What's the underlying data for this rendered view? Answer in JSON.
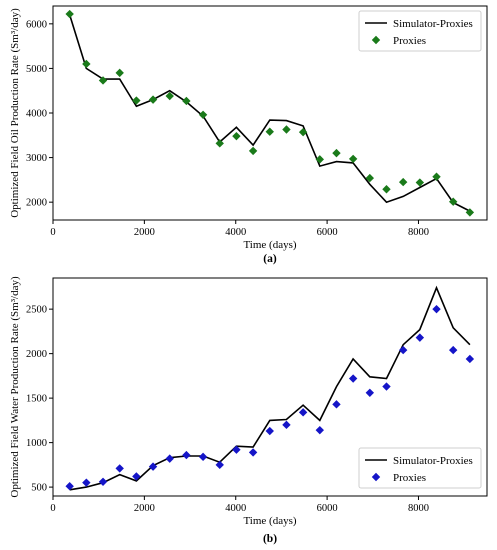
{
  "chart_data": [
    {
      "type": "line",
      "caption": "(a)",
      "xlabel": "Time (days)",
      "ylabel": "Optimized Field Oil Production Rate (Sm³/day)",
      "xlim": [
        0,
        9500
      ],
      "ylim": [
        1600,
        6400
      ],
      "xticks": [
        0,
        2000,
        4000,
        6000,
        8000
      ],
      "yticks": [
        2000,
        3000,
        4000,
        5000,
        6000
      ],
      "grid": false,
      "legend_position": "top-right",
      "series": [
        {
          "name": "Simulator-Proxies",
          "style": "line",
          "color": "#000000",
          "x": [
            365,
            730,
            1095,
            1460,
            1825,
            2190,
            2555,
            2920,
            3285,
            3650,
            4015,
            4380,
            4745,
            5110,
            5475,
            5840,
            6205,
            6570,
            6935,
            7300,
            7665,
            8030,
            8395,
            8760,
            9125
          ],
          "y": [
            6200,
            5000,
            4760,
            4760,
            4150,
            4300,
            4500,
            4250,
            3930,
            3350,
            3680,
            3280,
            3840,
            3830,
            3710,
            2810,
            2910,
            2880,
            2400,
            2000,
            2130,
            2330,
            2530,
            1990,
            1800
          ]
        },
        {
          "name": "Proxies",
          "style": "marker",
          "marker": "diamond",
          "color": "#1a7a1a",
          "x": [
            365,
            730,
            1095,
            1460,
            1825,
            2190,
            2555,
            2920,
            3285,
            3650,
            4015,
            4380,
            4745,
            5110,
            5475,
            5840,
            6205,
            6570,
            6935,
            7300,
            7665,
            8030,
            8395,
            8760,
            9125
          ],
          "y": [
            6220,
            5100,
            4730,
            4900,
            4280,
            4300,
            4380,
            4270,
            3960,
            3320,
            3480,
            3150,
            3580,
            3630,
            3570,
            2960,
            3100,
            2970,
            2540,
            2290,
            2450,
            2440,
            2570,
            2010,
            1770
          ]
        }
      ]
    },
    {
      "type": "line",
      "caption": "(b)",
      "xlabel": "Time (days)",
      "ylabel": "Optimized Field Water Production Rate (Sm³/day)",
      "xlim": [
        0,
        9500
      ],
      "ylim": [
        400,
        2850
      ],
      "xticks": [
        0,
        2000,
        4000,
        6000,
        8000
      ],
      "yticks": [
        500,
        1000,
        1500,
        2000,
        2500
      ],
      "grid": false,
      "legend_position": "bottom-right",
      "series": [
        {
          "name": "Simulator-Proxies",
          "style": "line",
          "color": "#000000",
          "x": [
            365,
            730,
            1095,
            1460,
            1825,
            2190,
            2555,
            2920,
            3285,
            3650,
            4015,
            4380,
            4745,
            5110,
            5475,
            5840,
            6205,
            6570,
            6935,
            7300,
            7665,
            8030,
            8395,
            8760,
            9125
          ],
          "y": [
            470,
            500,
            550,
            640,
            570,
            740,
            830,
            850,
            850,
            780,
            960,
            950,
            1250,
            1260,
            1420,
            1250,
            1630,
            1940,
            1740,
            1720,
            2100,
            2270,
            2740,
            2290,
            2100
          ]
        },
        {
          "name": "Proxies",
          "style": "marker",
          "marker": "diamond",
          "color": "#1515c8",
          "x": [
            365,
            730,
            1095,
            1460,
            1825,
            2190,
            2555,
            2920,
            3285,
            3650,
            4015,
            4380,
            4745,
            5110,
            5475,
            5840,
            6205,
            6570,
            6935,
            7300,
            7665,
            8030,
            8395,
            8760,
            9125
          ],
          "y": [
            510,
            550,
            560,
            710,
            620,
            730,
            820,
            860,
            840,
            750,
            920,
            890,
            1130,
            1200,
            1340,
            1140,
            1430,
            1720,
            1560,
            1630,
            2040,
            2180,
            2500,
            2040,
            1940
          ]
        }
      ]
    }
  ]
}
